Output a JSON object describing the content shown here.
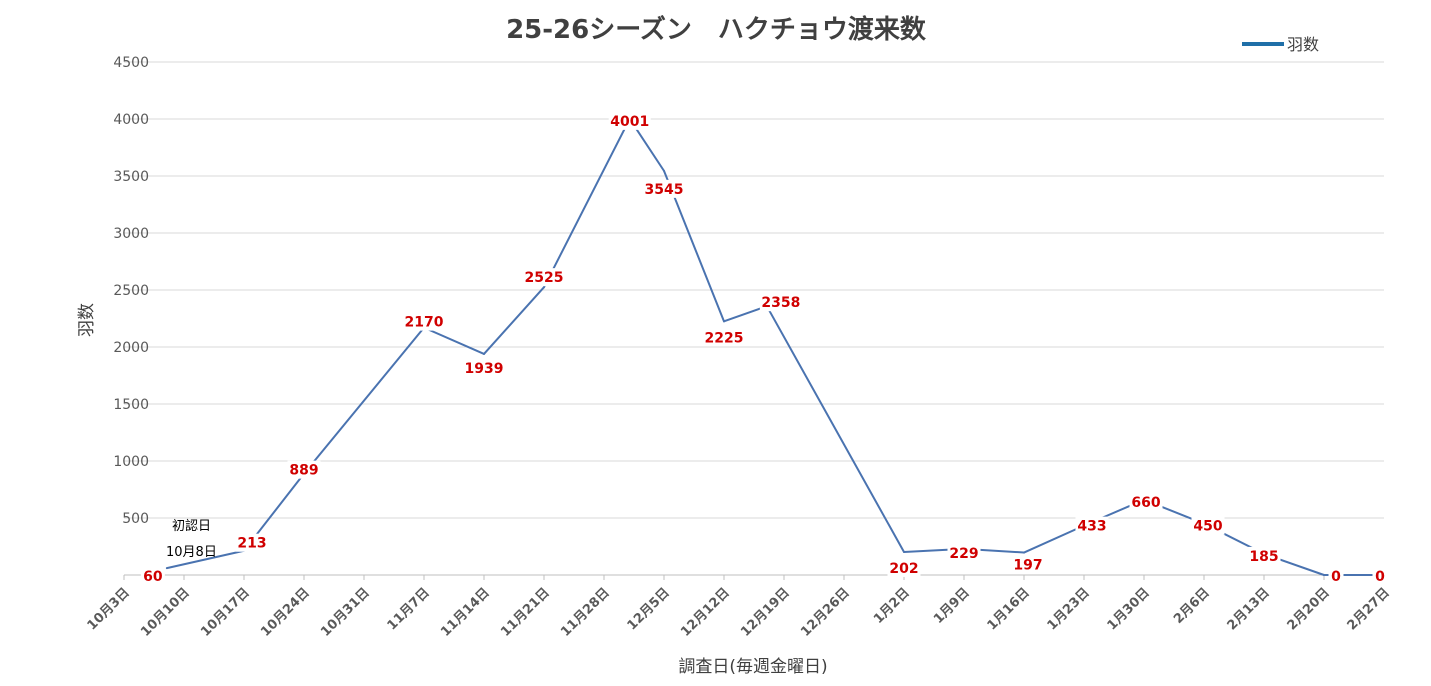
{
  "chart_data": {
    "type": "line",
    "title": "25-26シーズン　ハクチョウ渡来数",
    "xlabel": "調査日(毎週金曜日)",
    "ylabel": "羽数",
    "ylim": [
      0,
      4500
    ],
    "yticks": [
      "0",
      "500",
      "1000",
      "1500",
      "2000",
      "2500",
      "3000",
      "3500",
      "4000",
      "4500"
    ],
    "grid": true,
    "legend_position": "top-right",
    "categories": [
      "10月3日",
      "10月10日",
      "10月17日",
      "10月24日",
      "10月31日",
      "11月7日",
      "11月14日",
      "11月21日",
      "11月28日",
      "12月5日",
      "12月12日",
      "12月19日",
      "12月26日",
      "1月2日",
      "1月9日",
      "1月16日",
      "1月23日",
      "1月30日",
      "2月6日",
      "2月13日",
      "2月20日",
      "2月27日"
    ],
    "series": [
      {
        "name": "羽数",
        "color": "#4a73b0",
        "points": [
          {
            "x": "10月8日",
            "y": 60
          },
          {
            "x": "10月17日",
            "y": 213
          },
          {
            "x": "10月24日",
            "y": 889
          },
          {
            "x": "11月7日",
            "y": 2170
          },
          {
            "x": "11月14日",
            "y": 1939
          },
          {
            "x": "11月21日",
            "y": 2525
          },
          {
            "x": "12月1日",
            "y": 4001
          },
          {
            "x": "12月5日",
            "y": 3545
          },
          {
            "x": "12月12日",
            "y": 2225
          },
          {
            "x": "12月17日",
            "y": 2358
          },
          {
            "x": "1月2日",
            "y": 202
          },
          {
            "x": "1月9日",
            "y": 229
          },
          {
            "x": "1月16日",
            "y": 197
          },
          {
            "x": "1月23日",
            "y": 433
          },
          {
            "x": "1月30日",
            "y": 660
          },
          {
            "x": "2月6日",
            "y": 450
          },
          {
            "x": "2月13日",
            "y": 185
          },
          {
            "x": "2月20日",
            "y": 0
          },
          {
            "x": "2月27日",
            "y": 0
          }
        ]
      }
    ],
    "annotations": [
      {
        "text": "初認日",
        "x": "10月8日"
      },
      {
        "text": "10月8日",
        "x": "10月8日"
      }
    ],
    "colors": {
      "line": "#4a73b0",
      "data_label": "#d00000",
      "gridline": "#d9d9d9",
      "axis_text": "#595959",
      "title": "#404040",
      "legend_line": "#1f6fa8"
    }
  }
}
